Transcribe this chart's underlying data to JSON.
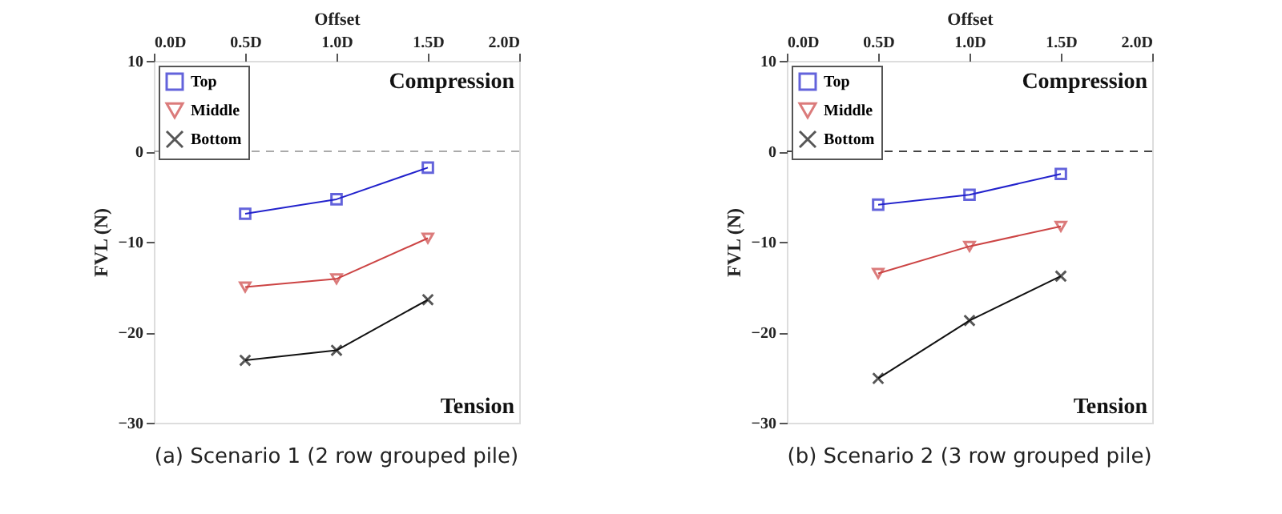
{
  "chart_data": [
    {
      "type": "line",
      "title": "(a) Scenario 1 (2 row grouped pile)",
      "xlabel": "Offset",
      "ylabel": "FVL (N)",
      "x": [
        0.5,
        1.0,
        1.5
      ],
      "series": [
        {
          "name": "Top",
          "color": "#2222cc",
          "marker": "square",
          "values": [
            -6.9,
            -5.3,
            -1.8
          ]
        },
        {
          "name": "Middle",
          "color": "#cc4444",
          "marker": "triangle",
          "values": [
            -15.0,
            -14.1,
            -9.6
          ]
        },
        {
          "name": "Bottom",
          "color": "#111111",
          "marker": "cross",
          "values": [
            -23.1,
            -22.0,
            -16.4
          ]
        }
      ],
      "xlim": [
        0,
        2
      ],
      "xticks": [
        {
          "value": 0,
          "label": "0.0D"
        },
        {
          "value": 0.5,
          "label": "0.5D"
        },
        {
          "value": 1,
          "label": "1.0D"
        },
        {
          "value": 1.5,
          "label": "1.5D"
        },
        {
          "value": 2,
          "label": "2.0D"
        }
      ],
      "ylim": [
        -30,
        10
      ],
      "yticks": [
        -30,
        -20,
        -10,
        0,
        10
      ],
      "ref_lines": [
        {
          "axis": "y",
          "value": 0,
          "label": null,
          "color": "#aaaaaa",
          "line_style": "dashed"
        }
      ],
      "annotations": [
        "Compression",
        "Tension"
      ],
      "legend": "top left",
      "grid": false
    },
    {
      "type": "line",
      "title": "(b) Scenario 2 (3 row grouped pile)",
      "xlabel": "Offset",
      "ylabel": "FVL (N)",
      "x": [
        0.5,
        1.0,
        1.5
      ],
      "series": [
        {
          "name": "Top",
          "color": "#2222cc",
          "marker": "square",
          "values": [
            -5.9,
            -4.8,
            -2.5
          ]
        },
        {
          "name": "Middle",
          "color": "#cc4444",
          "marker": "triangle",
          "values": [
            -13.5,
            -10.5,
            -8.3
          ]
        },
        {
          "name": "Bottom",
          "color": "#111111",
          "marker": "cross",
          "values": [
            -25.1,
            -18.7,
            -13.8
          ]
        }
      ],
      "xlim": [
        0,
        2
      ],
      "xticks": [
        {
          "value": 0,
          "label": "0.0D"
        },
        {
          "value": 0.5,
          "label": "0.5D"
        },
        {
          "value": 1,
          "label": "1.0D"
        },
        {
          "value": 1.5,
          "label": "1.5D"
        },
        {
          "value": 2,
          "label": "2.0D"
        }
      ],
      "ylim": [
        -30,
        10
      ],
      "yticks": [
        -30,
        -20,
        -10,
        0,
        10
      ],
      "ref_lines": [
        {
          "axis": "y",
          "value": 0,
          "label": null,
          "color": "#444444",
          "line_style": "dashed"
        }
      ],
      "annotations": [
        "Compression",
        "Tension"
      ],
      "legend": "top left",
      "grid": false
    }
  ]
}
